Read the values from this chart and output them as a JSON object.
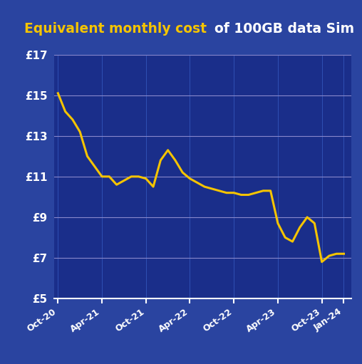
{
  "title_yellow": "Equivalent monthly cost ",
  "title_white": "of 100GB data Sim",
  "background_outer": "#2a44a0",
  "background_inner": "#1a2e8a",
  "line_color": "#f5c400",
  "grid_color_h": "#8888cc",
  "grid_color_v": "#3355bb",
  "text_color": "#ffffff",
  "title_yellow_color": "#f5c400",
  "ylim": [
    5,
    17
  ],
  "yticks": [
    5,
    7,
    9,
    11,
    13,
    15,
    17
  ],
  "ytick_labels": [
    "£5",
    "£7",
    "£9",
    "£11",
    "£13",
    "£15",
    "£17"
  ],
  "xtick_labels": [
    "Oct-20",
    "Apr-21",
    "Oct-21",
    "Apr-22",
    "Oct-22",
    "Apr-23",
    "Oct-23",
    "Jan-24"
  ],
  "x_values": [
    0,
    6,
    12,
    18,
    24,
    30,
    36,
    39
  ],
  "data_x": [
    0,
    1,
    2,
    3,
    4,
    5,
    6,
    7,
    8,
    9,
    10,
    11,
    12,
    13,
    14,
    15,
    16,
    17,
    18,
    19,
    20,
    21,
    22,
    23,
    24,
    25,
    26,
    27,
    28,
    29,
    30,
    31,
    32,
    33,
    34,
    35,
    36,
    37,
    38,
    39
  ],
  "data_y": [
    15.1,
    14.2,
    13.8,
    13.2,
    12.0,
    11.5,
    11.0,
    11.0,
    10.6,
    10.8,
    11.0,
    11.0,
    10.9,
    10.5,
    11.8,
    12.3,
    11.8,
    11.2,
    10.9,
    10.7,
    10.5,
    10.4,
    10.3,
    10.2,
    10.2,
    10.1,
    10.1,
    10.2,
    10.3,
    10.3,
    8.7,
    8.0,
    7.8,
    8.5,
    9.0,
    8.7,
    6.8,
    7.1,
    7.2,
    7.2
  ]
}
